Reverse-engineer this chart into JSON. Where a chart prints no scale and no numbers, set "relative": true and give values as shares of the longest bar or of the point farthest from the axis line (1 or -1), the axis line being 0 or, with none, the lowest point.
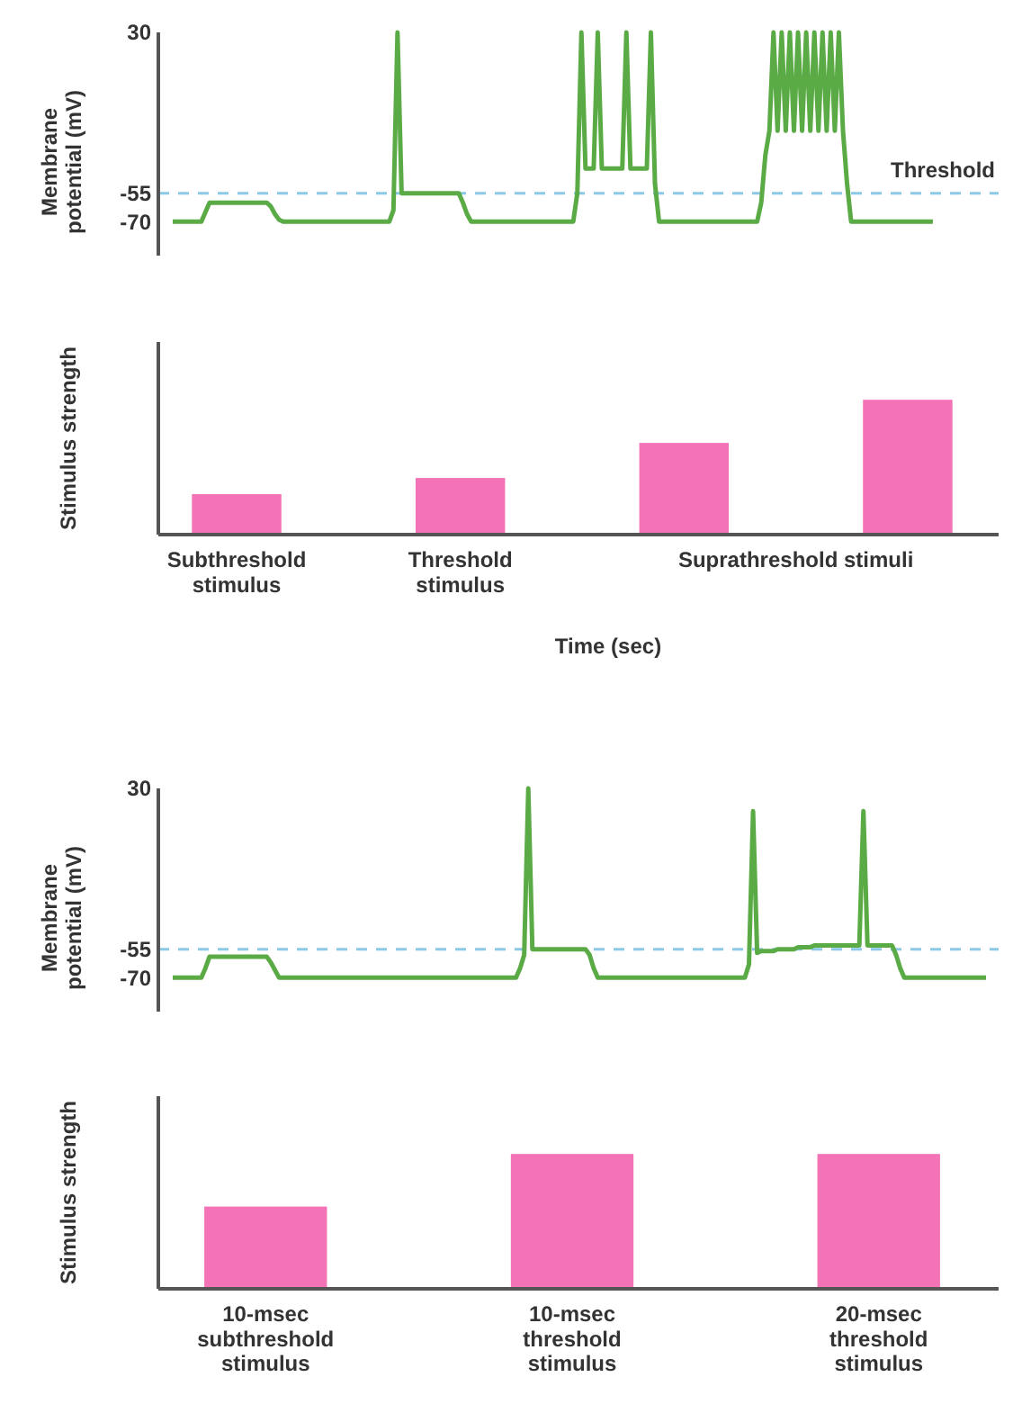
{
  "chart_data": [
    {
      "type": "line",
      "ylabel": "Membrane potential (mV)",
      "ylim": [
        -88,
        30
      ],
      "yticks": [
        -70,
        -55,
        30
      ],
      "tick_labels": "y",
      "categories": [
        null,
        null,
        null,
        null,
        null,
        null,
        null,
        null,
        null,
        null,
        null,
        null,
        null,
        null,
        null,
        null,
        null,
        null,
        null,
        null,
        null,
        null,
        null,
        null,
        null,
        null,
        null,
        null,
        null,
        null,
        null,
        null,
        null,
        null,
        null,
        null,
        null,
        null,
        null,
        null,
        null,
        null,
        null,
        null,
        null,
        null,
        null,
        null,
        null,
        null,
        null,
        null,
        null,
        null,
        null,
        null,
        null,
        null,
        null,
        null,
        null,
        null,
        null,
        null,
        null,
        null,
        null,
        null,
        null,
        null,
        null,
        null,
        null,
        null,
        null,
        null,
        null,
        null,
        null,
        null,
        null,
        null,
        null,
        null,
        null,
        null,
        null,
        null,
        null,
        null,
        null,
        null,
        null,
        null,
        null,
        null,
        null,
        null,
        null,
        null,
        null,
        null,
        null,
        null,
        null,
        null,
        null,
        null,
        null,
        null,
        null,
        null,
        null,
        null,
        null,
        null,
        null,
        null,
        null,
        null,
        null,
        null,
        null,
        null,
        null,
        null,
        null,
        null,
        null,
        null,
        null,
        null,
        null,
        null,
        null,
        null,
        null,
        null,
        null,
        null,
        null,
        null,
        null,
        null,
        null,
        null,
        null,
        null,
        null,
        null,
        null,
        null,
        null,
        null,
        null,
        null,
        null,
        null,
        null,
        null,
        null,
        null,
        null,
        null,
        null,
        null,
        null,
        null,
        null,
        null,
        null,
        null,
        null,
        null,
        null,
        null,
        null,
        null,
        null,
        null,
        null,
        null,
        null,
        null,
        null,
        null,
        null,
        null,
        null,
        null,
        null,
        null,
        null,
        null,
        null,
        null,
        null,
        null,
        null,
        null
      ],
      "ref_lines": [
        {
          "axis": "y",
          "value": -55,
          "label": "Threshold",
          "color": "#8cc8e8",
          "line_style": "dashed"
        }
      ],
      "series": [
        {
          "color": "#5aab45",
          "values": [
            -70,
            -70,
            -70,
            -70,
            -70,
            -70,
            -70,
            -70,
            -65,
            -60,
            -60,
            -60,
            -60,
            -60,
            -60,
            -60,
            -60,
            -60,
            -60,
            -60,
            -60,
            -60,
            -60,
            -60,
            -62,
            -66,
            -69,
            -70,
            -70,
            -70,
            -70,
            -70,
            -70,
            -70,
            -70,
            -70,
            -70,
            -70,
            -70,
            -70,
            -70,
            -70,
            -70,
            -70,
            -70,
            -70,
            -70,
            -70,
            -70,
            -70,
            -70,
            -70,
            -70,
            -70,
            -64,
            30,
            -55,
            -55,
            -55,
            -55,
            -55,
            -55,
            -55,
            -55,
            -55,
            -55,
            -55,
            -55,
            -55,
            -55,
            -55,
            -60,
            -66,
            -70,
            -70,
            -70,
            -70,
            -70,
            -70,
            -70,
            -70,
            -70,
            -70,
            -70,
            -70,
            -70,
            -70,
            -70,
            -70,
            -70,
            -70,
            -70,
            -70,
            -70,
            -70,
            -70,
            -70,
            -70,
            -70,
            -55,
            30,
            -42,
            -42,
            -42,
            30,
            -42,
            -42,
            -42,
            -42,
            -42,
            -42,
            30,
            -42,
            -42,
            -42,
            -42,
            -42,
            30,
            -50,
            -70,
            -70,
            -70,
            -70,
            -70,
            -70,
            -70,
            -70,
            -70,
            -70,
            -70,
            -70,
            -70,
            -70,
            -70,
            -70,
            -70,
            -70,
            -70,
            -70,
            -70,
            -70,
            -70,
            -70,
            -70,
            -60,
            -35,
            -22,
            30,
            -22,
            30,
            -22,
            30,
            -22,
            30,
            -22,
            30,
            -22,
            30,
            -22,
            30,
            -22,
            30,
            -22,
            30,
            -22,
            -50,
            -70,
            -70,
            -70,
            -70,
            -70,
            -70,
            -70,
            -70,
            -70,
            -70,
            -70,
            -70,
            -70,
            -70,
            -70,
            -70,
            -70,
            -70,
            -70,
            -70,
            -70,
            null,
            null,
            null,
            null,
            null,
            null,
            null,
            null,
            null,
            null,
            null,
            null,
            null
          ]
        }
      ]
    },
    {
      "type": "bar",
      "ylabel": "Stimulus strength",
      "xlabel": "Time (sec)",
      "relative": true,
      "tick_labels": "x",
      "categories": [
        "Subthreshold stimulus",
        "Threshold stimulus",
        null,
        null
      ],
      "values": [
        0.3,
        0.42,
        0.68,
        1
      ],
      "color": "#f472b6",
      "annotations": [
        "Suprathreshold stimuli"
      ]
    },
    {
      "type": "line",
      "ylabel": "Membrane potential (mV)",
      "ylim": [
        -88,
        30
      ],
      "yticks": [
        -70,
        -55,
        30
      ],
      "tick_labels": "y",
      "categories": [
        null,
        null,
        null,
        null,
        null,
        null,
        null,
        null,
        null,
        null,
        null,
        null,
        null,
        null,
        null,
        null,
        null,
        null,
        null,
        null,
        null,
        null,
        null,
        null,
        null,
        null,
        null,
        null,
        null,
        null,
        null,
        null,
        null,
        null,
        null,
        null,
        null,
        null,
        null,
        null,
        null,
        null,
        null,
        null,
        null,
        null,
        null,
        null,
        null,
        null,
        null,
        null,
        null,
        null,
        null,
        null,
        null,
        null,
        null,
        null,
        null,
        null,
        null,
        null,
        null,
        null,
        null,
        null,
        null,
        null,
        null,
        null,
        null,
        null,
        null,
        null,
        null,
        null,
        null,
        null,
        null,
        null,
        null,
        null,
        null,
        null,
        null,
        null,
        null,
        null,
        null,
        null,
        null,
        null,
        null,
        null,
        null,
        null,
        null,
        null,
        null,
        null,
        null,
        null,
        null,
        null,
        null,
        null,
        null,
        null,
        null,
        null,
        null,
        null,
        null,
        null,
        null,
        null,
        null,
        null,
        null,
        null,
        null,
        null,
        null,
        null,
        null,
        null,
        null,
        null,
        null,
        null,
        null,
        null,
        null,
        null,
        null,
        null,
        null,
        null,
        null,
        null,
        null,
        null,
        null,
        null,
        null,
        null,
        null,
        null,
        null,
        null,
        null,
        null,
        null,
        null,
        null,
        null,
        null,
        null,
        null,
        null,
        null,
        null,
        null,
        null,
        null,
        null,
        null,
        null,
        null,
        null,
        null,
        null,
        null,
        null,
        null,
        null,
        null,
        null,
        null,
        null,
        null,
        null,
        null,
        null,
        null,
        null,
        null,
        null,
        null,
        null,
        null,
        null,
        null,
        null,
        null,
        null,
        null,
        null
      ],
      "ref_lines": [
        {
          "axis": "y",
          "value": -55,
          "color": "#8cc8e8",
          "line_style": "dashed"
        }
      ],
      "series": [
        {
          "color": "#5aab45",
          "values": [
            -70,
            -70,
            -70,
            -70,
            -70,
            -70,
            -70,
            -70,
            -65,
            -59,
            -59,
            -59,
            -59,
            -59,
            -59,
            -59,
            -59,
            -59,
            -59,
            -59,
            -59,
            -59,
            -59,
            -59,
            -62,
            -66,
            -70,
            -70,
            -70,
            -70,
            -70,
            -70,
            -70,
            -70,
            -70,
            -70,
            -70,
            -70,
            -70,
            -70,
            -70,
            -70,
            -70,
            -70,
            -70,
            -70,
            -70,
            -70,
            -70,
            -70,
            -70,
            -70,
            -70,
            -70,
            -70,
            -70,
            -70,
            -70,
            -70,
            -70,
            -70,
            -70,
            -70,
            -70,
            -70,
            -70,
            -70,
            -70,
            -70,
            -70,
            -70,
            -70,
            -70,
            -70,
            -70,
            -70,
            -70,
            -70,
            -70,
            -70,
            -70,
            -70,
            -70,
            -70,
            -70,
            -65,
            -58,
            30,
            -55,
            -55,
            -55,
            -55,
            -55,
            -55,
            -55,
            -55,
            -55,
            -55,
            -55,
            -55,
            -55,
            -55,
            -58,
            -65,
            -70,
            -70,
            -70,
            -70,
            -70,
            -70,
            -70,
            -70,
            -70,
            -70,
            -70,
            -70,
            -70,
            -70,
            -70,
            -70,
            -70,
            -70,
            -70,
            -70,
            -70,
            -70,
            -70,
            -70,
            -70,
            -70,
            -70,
            -70,
            -70,
            -70,
            -70,
            -70,
            -70,
            -70,
            -70,
            -70,
            -70,
            -63,
            18,
            -57,
            -56,
            -56,
            -56,
            -56,
            -55,
            -55,
            -55,
            -55,
            -55,
            -54,
            -54,
            -54,
            -54,
            -53,
            -53,
            -53,
            -53,
            -53,
            -53,
            -53,
            -53,
            -53,
            -53,
            -53,
            -53,
            18,
            -53,
            -53,
            -53,
            -53,
            -53,
            -53,
            -53,
            -58,
            -65,
            -70,
            -70,
            -70,
            -70,
            -70,
            -70,
            -70,
            -70,
            -70,
            -70,
            -70,
            -70,
            -70,
            -70,
            -70,
            -70,
            -70,
            -70,
            -70,
            -70,
            -70
          ]
        }
      ]
    },
    {
      "type": "bar",
      "ylabel": "Stimulus strength",
      "relative": true,
      "tick_labels": "x",
      "categories": [
        "10-msec subthreshold stimulus",
        "10-msec threshold stimulus",
        "20-msec threshold stimulus"
      ],
      "values": [
        0.61,
        1,
        1
      ],
      "color": "#f472b6"
    }
  ]
}
